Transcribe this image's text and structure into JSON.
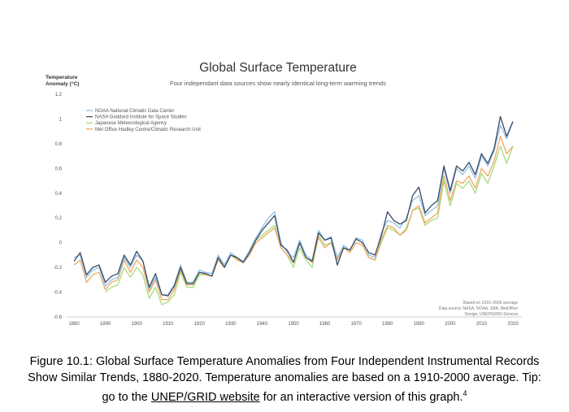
{
  "chart_data": {
    "type": "line",
    "title": "Global Surface Temperature",
    "subtitle": "Four independant data sources show nearly identical long-term warming trends",
    "ylabel_line1": "Temperature",
    "ylabel_line2": "Anomaly (°C)",
    "xlim": [
      1880,
      2020
    ],
    "ylim": [
      -0.6,
      1.2
    ],
    "xticks": [
      1880,
      1890,
      1900,
      1910,
      1920,
      1930,
      1940,
      1950,
      1960,
      1970,
      1980,
      1990,
      2000,
      2010,
      2020
    ],
    "yticks": [
      {
        "v": 1.2,
        "label": "1.2"
      },
      {
        "v": 1.0,
        "label": "1"
      },
      {
        "v": 0.8,
        "label": "0.8"
      },
      {
        "v": 0.6,
        "label": "0.6"
      },
      {
        "v": 0.4,
        "label": "0.4"
      },
      {
        "v": 0.2,
        "label": "0.2"
      },
      {
        "v": 0.0,
        "label": "0"
      },
      {
        "v": -0.2,
        "label": "-0.2"
      },
      {
        "v": -0.4,
        "label": "-0.4"
      },
      {
        "v": -0.6,
        "label": "-0.6"
      }
    ],
    "grid": false,
    "legend_position": "top-left",
    "note_line1": "Based on 1910–2000 average",
    "note_line2": "Data source: NASA, NOAA, JMA, MetOffice",
    "note_line3": "Design: UNEP/GRID-Geneva",
    "series": [
      {
        "name": "NOAA National Climatic Data Center",
        "color": "#8fc3e8",
        "x": [
          1880,
          1882,
          1884,
          1886,
          1888,
          1890,
          1892,
          1894,
          1896,
          1898,
          1900,
          1902,
          1904,
          1906,
          1908,
          1910,
          1912,
          1914,
          1916,
          1918,
          1920,
          1922,
          1924,
          1926,
          1928,
          1930,
          1932,
          1934,
          1936,
          1938,
          1940,
          1942,
          1944,
          1946,
          1948,
          1950,
          1952,
          1954,
          1956,
          1958,
          1960,
          1962,
          1964,
          1966,
          1968,
          1970,
          1972,
          1974,
          1976,
          1978,
          1980,
          1982,
          1984,
          1986,
          1988,
          1990,
          1992,
          1994,
          1996,
          1998,
          2000,
          2002,
          2004,
          2006,
          2008,
          2010,
          2012,
          2014,
          2016,
          2018,
          2020
        ],
        "y": [
          -0.12,
          -0.1,
          -0.28,
          -0.22,
          -0.2,
          -0.35,
          -0.3,
          -0.28,
          -0.12,
          -0.2,
          -0.1,
          -0.15,
          -0.38,
          -0.28,
          -0.42,
          -0.42,
          -0.34,
          -0.18,
          -0.32,
          -0.32,
          -0.22,
          -0.24,
          -0.25,
          -0.1,
          -0.18,
          -0.08,
          -0.12,
          -0.15,
          -0.06,
          0.04,
          0.12,
          0.2,
          0.25,
          0.0,
          -0.08,
          -0.12,
          0.02,
          -0.1,
          -0.14,
          0.1,
          0.02,
          0.05,
          -0.12,
          -0.02,
          -0.06,
          0.04,
          0.02,
          -0.1,
          -0.12,
          0.08,
          0.18,
          0.16,
          0.12,
          0.2,
          0.34,
          0.38,
          0.22,
          0.26,
          0.3,
          0.6,
          0.4,
          0.6,
          0.55,
          0.62,
          0.52,
          0.7,
          0.62,
          0.74,
          0.95,
          0.84,
          0.98
        ]
      },
      {
        "name": "NASA Goddard Institute for Space Studies",
        "color": "#3a4a66",
        "x": [
          1880,
          1882,
          1884,
          1886,
          1888,
          1890,
          1892,
          1894,
          1896,
          1898,
          1900,
          1902,
          1904,
          1906,
          1908,
          1910,
          1912,
          1914,
          1916,
          1918,
          1920,
          1922,
          1924,
          1926,
          1928,
          1930,
          1932,
          1934,
          1936,
          1938,
          1940,
          1942,
          1944,
          1946,
          1948,
          1950,
          1952,
          1954,
          1956,
          1958,
          1960,
          1962,
          1964,
          1966,
          1968,
          1970,
          1972,
          1974,
          1976,
          1978,
          1980,
          1982,
          1984,
          1986,
          1988,
          1990,
          1992,
          1994,
          1996,
          1998,
          2000,
          2002,
          2004,
          2006,
          2008,
          2010,
          2012,
          2014,
          2016,
          2018,
          2020
        ],
        "y": [
          -0.15,
          -0.08,
          -0.26,
          -0.2,
          -0.18,
          -0.32,
          -0.27,
          -0.25,
          -0.1,
          -0.18,
          -0.07,
          -0.15,
          -0.36,
          -0.25,
          -0.42,
          -0.43,
          -0.35,
          -0.2,
          -0.33,
          -0.33,
          -0.24,
          -0.25,
          -0.27,
          -0.12,
          -0.2,
          -0.1,
          -0.12,
          -0.16,
          -0.08,
          0.02,
          0.1,
          0.16,
          0.22,
          -0.02,
          -0.06,
          -0.16,
          0.0,
          -0.12,
          -0.15,
          0.08,
          0.02,
          0.04,
          -0.18,
          -0.04,
          -0.06,
          0.03,
          0.0,
          -0.08,
          -0.1,
          0.05,
          0.25,
          0.18,
          0.15,
          0.18,
          0.38,
          0.45,
          0.24,
          0.3,
          0.34,
          0.62,
          0.42,
          0.62,
          0.58,
          0.65,
          0.55,
          0.72,
          0.64,
          0.76,
          1.02,
          0.86,
          0.98
        ]
      },
      {
        "name": "Japanese Meteorological Agency",
        "color": "#a8dc7a",
        "x": [
          1890,
          1892,
          1894,
          1896,
          1898,
          1900,
          1902,
          1904,
          1906,
          1908,
          1910,
          1912,
          1914,
          1916,
          1918,
          1920,
          1922,
          1924,
          1926,
          1928,
          1930,
          1932,
          1934,
          1936,
          1938,
          1940,
          1942,
          1944,
          1946,
          1948,
          1950,
          1952,
          1954,
          1956,
          1958,
          1960,
          1962,
          1964,
          1966,
          1968,
          1970,
          1972,
          1974,
          1976,
          1978,
          1980,
          1982,
          1984,
          1986,
          1988,
          1990,
          1992,
          1994,
          1996,
          1998,
          2000,
          2002,
          2004,
          2006,
          2008,
          2010,
          2012,
          2014,
          2016,
          2018,
          2020
        ],
        "y": [
          -0.4,
          -0.36,
          -0.34,
          -0.2,
          -0.28,
          -0.2,
          -0.26,
          -0.45,
          -0.36,
          -0.5,
          -0.48,
          -0.42,
          -0.24,
          -0.36,
          -0.36,
          -0.26,
          -0.26,
          -0.27,
          -0.12,
          -0.18,
          -0.1,
          -0.13,
          -0.16,
          -0.08,
          0.02,
          0.06,
          0.1,
          0.14,
          -0.04,
          -0.1,
          -0.2,
          -0.04,
          -0.14,
          -0.2,
          0.06,
          -0.02,
          0.0,
          -0.14,
          -0.04,
          -0.08,
          0.0,
          -0.02,
          -0.12,
          -0.14,
          0.0,
          0.12,
          0.1,
          0.06,
          0.12,
          0.26,
          0.28,
          0.14,
          0.18,
          0.2,
          0.5,
          0.3,
          0.48,
          0.44,
          0.5,
          0.4,
          0.56,
          0.48,
          0.62,
          0.78,
          0.64,
          0.78
        ]
      },
      {
        "name": "Met Office Hadley Centre/Climatic Research Unit",
        "color": "#f0a860",
        "x": [
          1880,
          1882,
          1884,
          1886,
          1888,
          1890,
          1892,
          1894,
          1896,
          1898,
          1900,
          1902,
          1904,
          1906,
          1908,
          1910,
          1912,
          1914,
          1916,
          1918,
          1920,
          1922,
          1924,
          1926,
          1928,
          1930,
          1932,
          1934,
          1936,
          1938,
          1940,
          1942,
          1944,
          1946,
          1948,
          1950,
          1952,
          1954,
          1956,
          1958,
          1960,
          1962,
          1964,
          1966,
          1968,
          1970,
          1972,
          1974,
          1976,
          1978,
          1980,
          1982,
          1984,
          1986,
          1988,
          1990,
          1992,
          1994,
          1996,
          1998,
          2000,
          2002,
          2004,
          2006,
          2008,
          2010,
          2012,
          2014,
          2016,
          2018,
          2020
        ],
        "y": [
          -0.18,
          -0.14,
          -0.32,
          -0.26,
          -0.24,
          -0.38,
          -0.32,
          -0.3,
          -0.14,
          -0.24,
          -0.14,
          -0.2,
          -0.4,
          -0.3,
          -0.46,
          -0.46,
          -0.38,
          -0.22,
          -0.34,
          -0.34,
          -0.24,
          -0.26,
          -0.27,
          -0.14,
          -0.2,
          -0.1,
          -0.14,
          -0.16,
          -0.1,
          0.0,
          0.04,
          0.08,
          0.12,
          -0.04,
          -0.1,
          -0.16,
          0.0,
          -0.12,
          -0.16,
          0.04,
          -0.04,
          0.0,
          -0.14,
          -0.04,
          -0.08,
          0.0,
          -0.02,
          -0.12,
          -0.14,
          0.02,
          0.14,
          0.12,
          0.06,
          0.1,
          0.26,
          0.3,
          0.16,
          0.2,
          0.24,
          0.54,
          0.34,
          0.5,
          0.48,
          0.54,
          0.44,
          0.6,
          0.54,
          0.66,
          0.86,
          0.72,
          0.78
        ]
      }
    ]
  },
  "caption": {
    "part1": "Figure 10.1: Global Surface Temperature Anomalies from Four Independent Instrumental Records Show Similar Trends, 1880-2020. Temperature anomalies are based on a 1910-2000 average. Tip: go to the ",
    "link": "UNEP/GRID website",
    "part2": " for an interactive version of this graph.",
    "footnote": "4"
  }
}
